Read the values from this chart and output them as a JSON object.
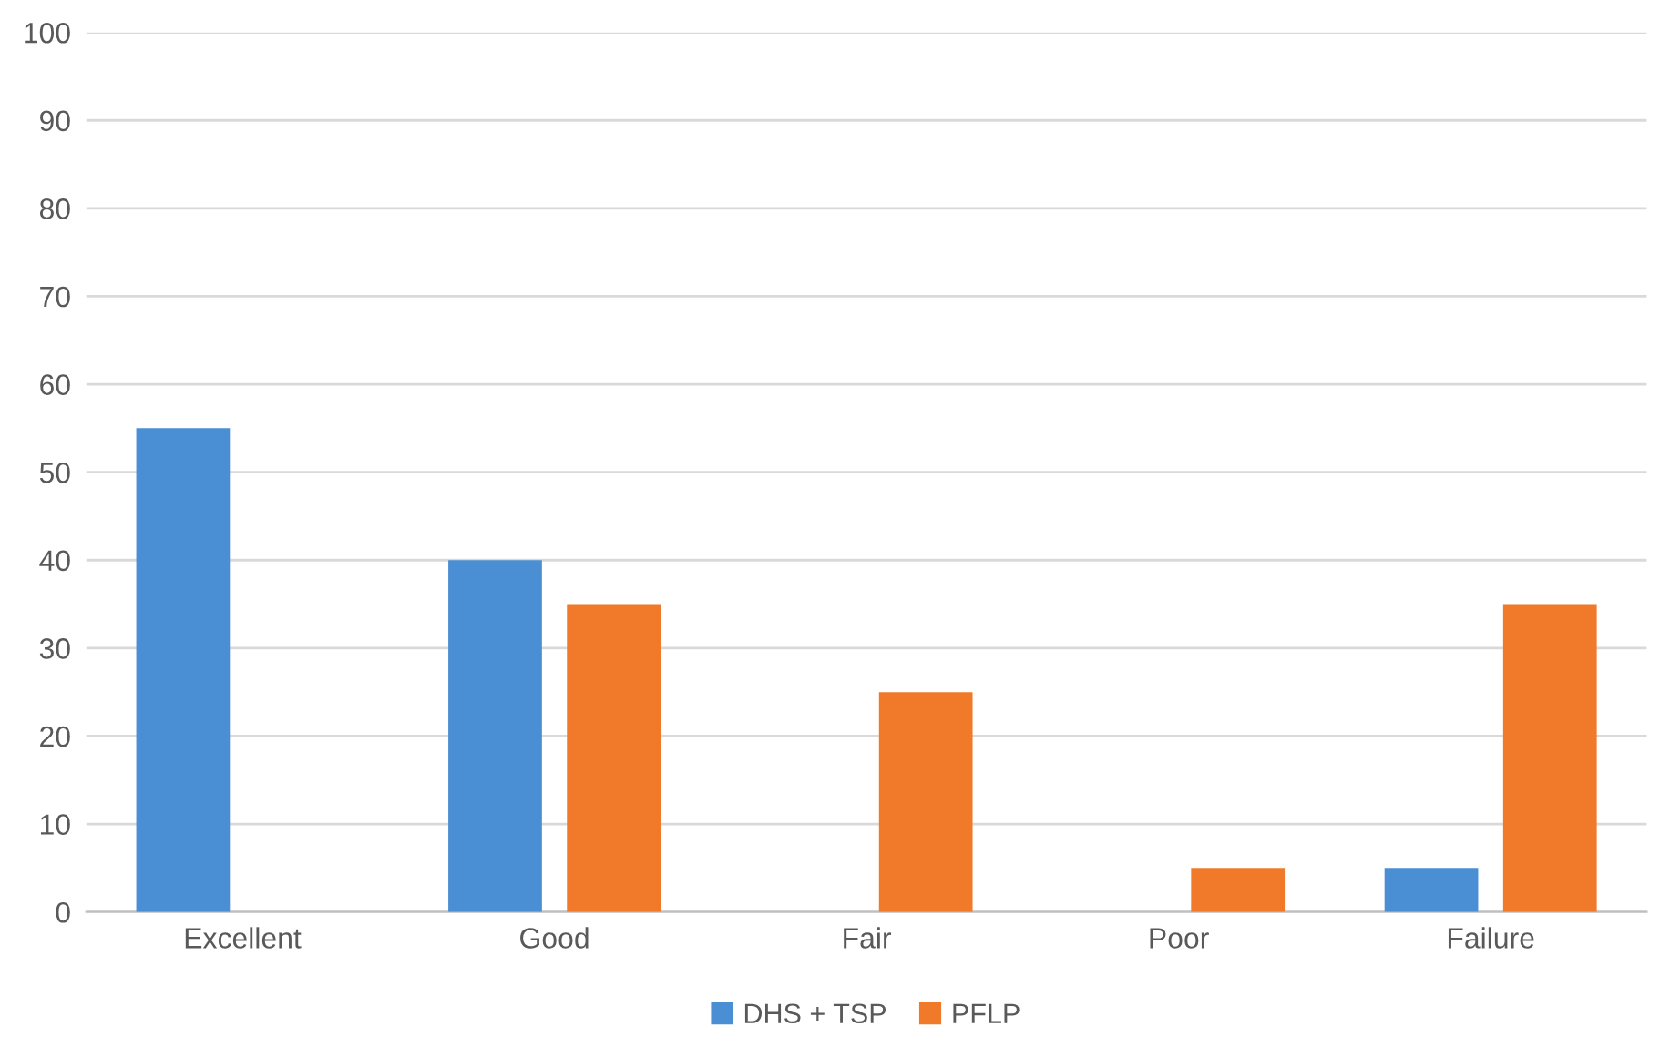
{
  "chart_data": {
    "type": "bar",
    "categories": [
      "Excellent",
      "Good",
      "Fair",
      "Poor",
      "Failure"
    ],
    "series": [
      {
        "name": "DHS + TSP",
        "color": "#4a8fd4",
        "values": [
          55,
          40,
          0,
          0,
          5
        ]
      },
      {
        "name": "PFLP",
        "color": "#f07a2a",
        "values": [
          0,
          35,
          25,
          5,
          35
        ]
      }
    ],
    "ylim": [
      0,
      100
    ],
    "yticks": [
      0,
      10,
      20,
      30,
      40,
      50,
      60,
      70,
      80,
      90,
      100
    ],
    "grid": "y",
    "legend": "bottom"
  }
}
